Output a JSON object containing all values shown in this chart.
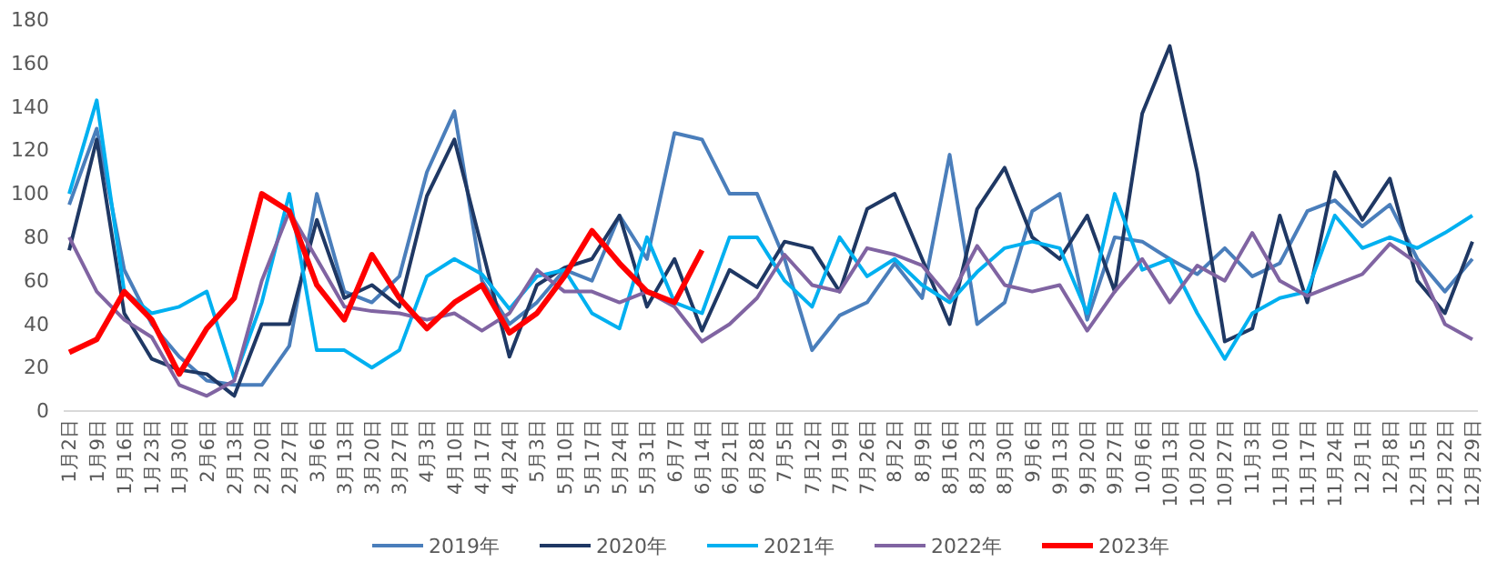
{
  "chart_data": {
    "type": "line",
    "categories": [
      "1月2日",
      "1月9日",
      "1月16日",
      "1月23日",
      "1月30日",
      "2月6日",
      "2月13日",
      "2月20日",
      "2月27日",
      "3月6日",
      "3月13日",
      "3月20日",
      "3月27日",
      "4月3日",
      "4月10日",
      "4月17日",
      "4月24日",
      "5月3日",
      "5月10日",
      "5月17日",
      "5月24日",
      "5月31日",
      "6月7日",
      "6月14日",
      "6月21日",
      "6月28日",
      "7月5日",
      "7月12日",
      "7月19日",
      "7月26日",
      "8月2日",
      "8月9日",
      "8月16日",
      "8月23日",
      "8月30日",
      "9月6日",
      "9月13日",
      "9月20日",
      "9月27日",
      "10月6日",
      "10月13日",
      "10月20日",
      "10月27日",
      "11月3日",
      "11月10日",
      "11月17日",
      "11月24日",
      "12月1日",
      "12月8日",
      "12月15日",
      "12月22日",
      "12月29日"
    ],
    "ylim": [
      0,
      180
    ],
    "yticks": [
      0,
      20,
      40,
      60,
      80,
      100,
      120,
      140,
      160,
      180
    ],
    "grid": false,
    "legend": "bottom",
    "marker": "none",
    "line_style": "solid",
    "series": [
      {
        "name": "2019年",
        "color": "#4a7ebb",
        "values": [
          95,
          130,
          65,
          40,
          25,
          14,
          12,
          12,
          30,
          100,
          55,
          50,
          62,
          110,
          138,
          60,
          40,
          50,
          65,
          60,
          90,
          70,
          128,
          125,
          100,
          100,
          70,
          28,
          44,
          50,
          68,
          52,
          118,
          40,
          50,
          92,
          100,
          42,
          80,
          78,
          70,
          63,
          75,
          62,
          68,
          92,
          97,
          85,
          95,
          70,
          55,
          70
        ]
      },
      {
        "name": "2020年",
        "color": "#1f3864",
        "values": [
          74,
          125,
          45,
          24,
          19,
          17,
          7,
          40,
          40,
          88,
          52,
          58,
          48,
          99,
          125,
          75,
          25,
          58,
          66,
          70,
          90,
          48,
          70,
          37,
          65,
          57,
          78,
          75,
          55,
          93,
          100,
          70,
          40,
          93,
          112,
          80,
          70,
          90,
          55,
          137,
          168,
          110,
          32,
          38,
          90,
          50,
          110,
          88,
          107,
          60,
          45,
          78
        ]
      },
      {
        "name": "2021年",
        "color": "#00b0f0",
        "values": [
          100,
          143,
          55,
          45,
          48,
          55,
          15,
          50,
          100,
          28,
          28,
          20,
          28,
          62,
          70,
          63,
          47,
          62,
          65,
          45,
          38,
          80,
          50,
          45,
          80,
          80,
          60,
          48,
          80,
          62,
          70,
          58,
          50,
          64,
          75,
          78,
          75,
          45,
          100,
          65,
          70,
          45,
          24,
          45,
          52,
          55,
          90,
          75,
          80,
          75,
          82,
          90
        ]
      },
      {
        "name": "2022年",
        "color": "#8064a2",
        "values": [
          80,
          55,
          42,
          34,
          12,
          7,
          14,
          60,
          92,
          70,
          48,
          46,
          45,
          42,
          45,
          37,
          45,
          65,
          55,
          55,
          50,
          55,
          48,
          32,
          40,
          52,
          72,
          58,
          55,
          75,
          72,
          67,
          52,
          76,
          58,
          55,
          58,
          37,
          55,
          70,
          50,
          67,
          60,
          82,
          60,
          53,
          58,
          63,
          77,
          68,
          40,
          33
        ]
      },
      {
        "name": "2023年",
        "color": "#ff0000",
        "values": [
          27,
          33,
          55,
          42,
          17,
          38,
          52,
          100,
          92,
          58,
          42,
          72,
          52,
          38,
          50,
          58,
          36,
          45,
          62,
          83,
          68,
          55,
          50,
          74,
          null,
          null,
          null,
          null,
          null,
          null,
          null,
          null,
          null,
          null,
          null,
          null,
          null,
          null,
          null,
          null,
          null,
          null,
          null,
          null,
          null,
          null,
          null,
          null,
          null,
          null,
          null,
          null
        ]
      }
    ]
  }
}
